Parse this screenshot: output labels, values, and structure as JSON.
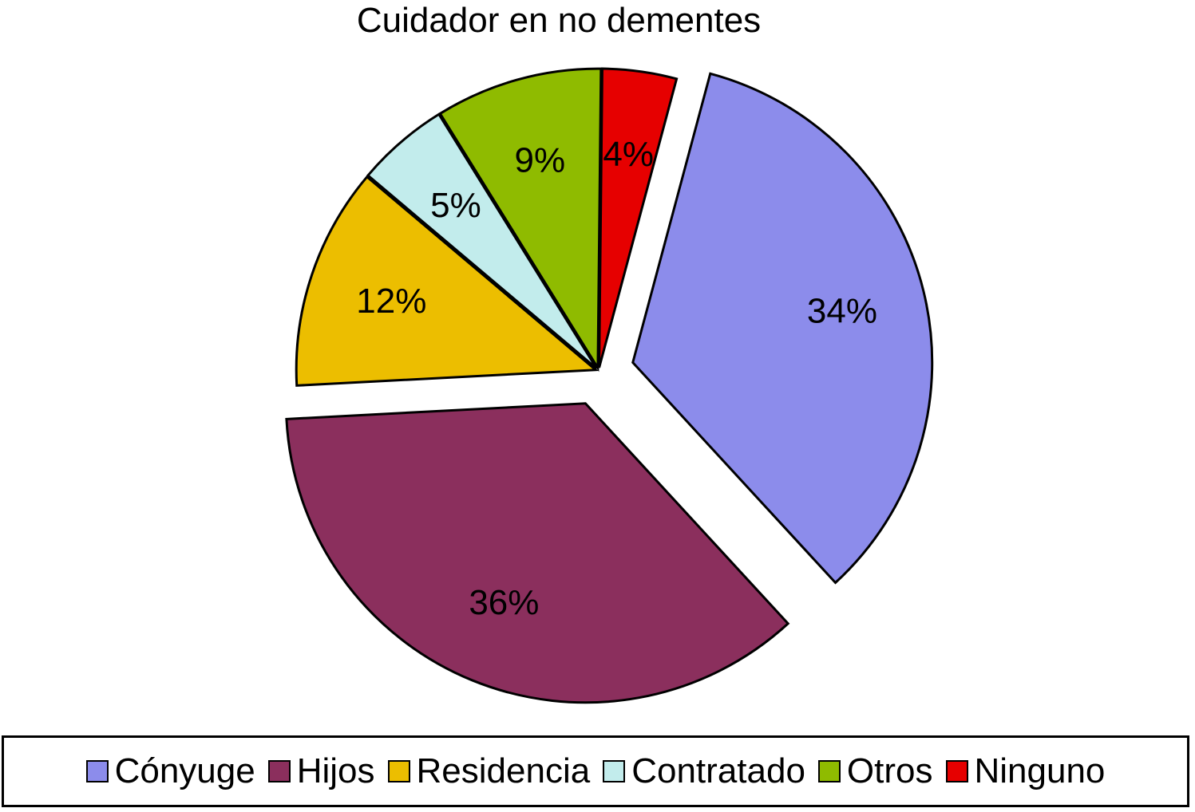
{
  "chart_data": {
    "type": "pie",
    "title": "Cuidador en no dementes",
    "categories": [
      "Cónyuge",
      "Hijos",
      "Residencia",
      "Contratado",
      "Otros",
      "Ninguno"
    ],
    "values": [
      34,
      36,
      12,
      5,
      9,
      4
    ],
    "value_labels": [
      "34%",
      "36%",
      "12%",
      "5%",
      "9%",
      "4%"
    ],
    "colors": [
      "#8c8ceb",
      "#8b2f5d",
      "#ecbe00",
      "#c2ecec",
      "#8fbb00",
      "#e60000"
    ],
    "exploded": [
      "Cónyuge",
      "Hijos"
    ],
    "legend_position": "bottom"
  }
}
